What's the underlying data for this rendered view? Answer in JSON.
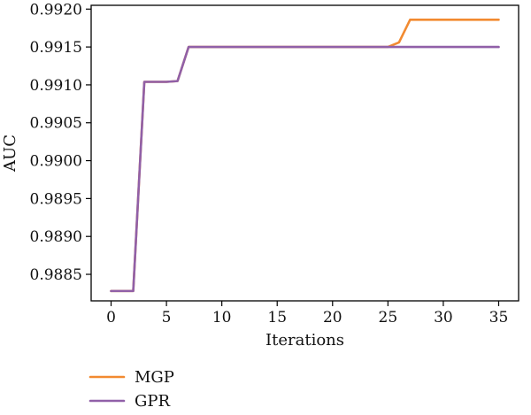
{
  "chart_data": {
    "type": "line",
    "xlabel": "Iterations",
    "ylabel": "AUC",
    "xlim": [
      -1.8,
      36.8
    ],
    "ylim": [
      0.98815,
      0.99205
    ],
    "xticks": [
      0,
      5,
      10,
      15,
      20,
      25,
      30,
      35
    ],
    "yticks": [
      0.9885,
      0.989,
      0.9895,
      0.99,
      0.9905,
      0.991,
      0.9915,
      0.992
    ],
    "legend_position": "bottom-left",
    "series": [
      {
        "name": "MGP",
        "color": "#f28a30",
        "x": [
          0,
          1,
          2,
          3,
          4,
          5,
          6,
          7,
          8,
          9,
          10,
          11,
          12,
          13,
          14,
          15,
          16,
          17,
          18,
          19,
          20,
          21,
          22,
          23,
          24,
          25,
          26,
          27,
          28,
          29,
          30,
          31,
          32,
          33,
          34,
          35
        ],
        "y": [
          0.98828,
          0.98828,
          0.98828,
          0.99104,
          0.99104,
          0.99104,
          0.99105,
          0.9915,
          0.9915,
          0.9915,
          0.9915,
          0.9915,
          0.9915,
          0.9915,
          0.9915,
          0.9915,
          0.9915,
          0.9915,
          0.9915,
          0.9915,
          0.9915,
          0.9915,
          0.9915,
          0.9915,
          0.9915,
          0.9915,
          0.99156,
          0.99186,
          0.99186,
          0.99186,
          0.99186,
          0.99186,
          0.99186,
          0.99186,
          0.99186,
          0.99186
        ]
      },
      {
        "name": "GPR",
        "color": "#9060a8",
        "x": [
          0,
          1,
          2,
          3,
          4,
          5,
          6,
          7,
          8,
          9,
          10,
          11,
          12,
          13,
          14,
          15,
          16,
          17,
          18,
          19,
          20,
          21,
          22,
          23,
          24,
          25,
          26,
          27,
          28,
          29,
          30,
          31,
          32,
          33,
          34,
          35
        ],
        "y": [
          0.98828,
          0.98828,
          0.98828,
          0.99104,
          0.99104,
          0.99104,
          0.99105,
          0.9915,
          0.9915,
          0.9915,
          0.9915,
          0.9915,
          0.9915,
          0.9915,
          0.9915,
          0.9915,
          0.9915,
          0.9915,
          0.9915,
          0.9915,
          0.9915,
          0.9915,
          0.9915,
          0.9915,
          0.9915,
          0.9915,
          0.9915,
          0.9915,
          0.9915,
          0.9915,
          0.9915,
          0.9915,
          0.9915,
          0.9915,
          0.9915,
          0.9915
        ]
      }
    ]
  }
}
